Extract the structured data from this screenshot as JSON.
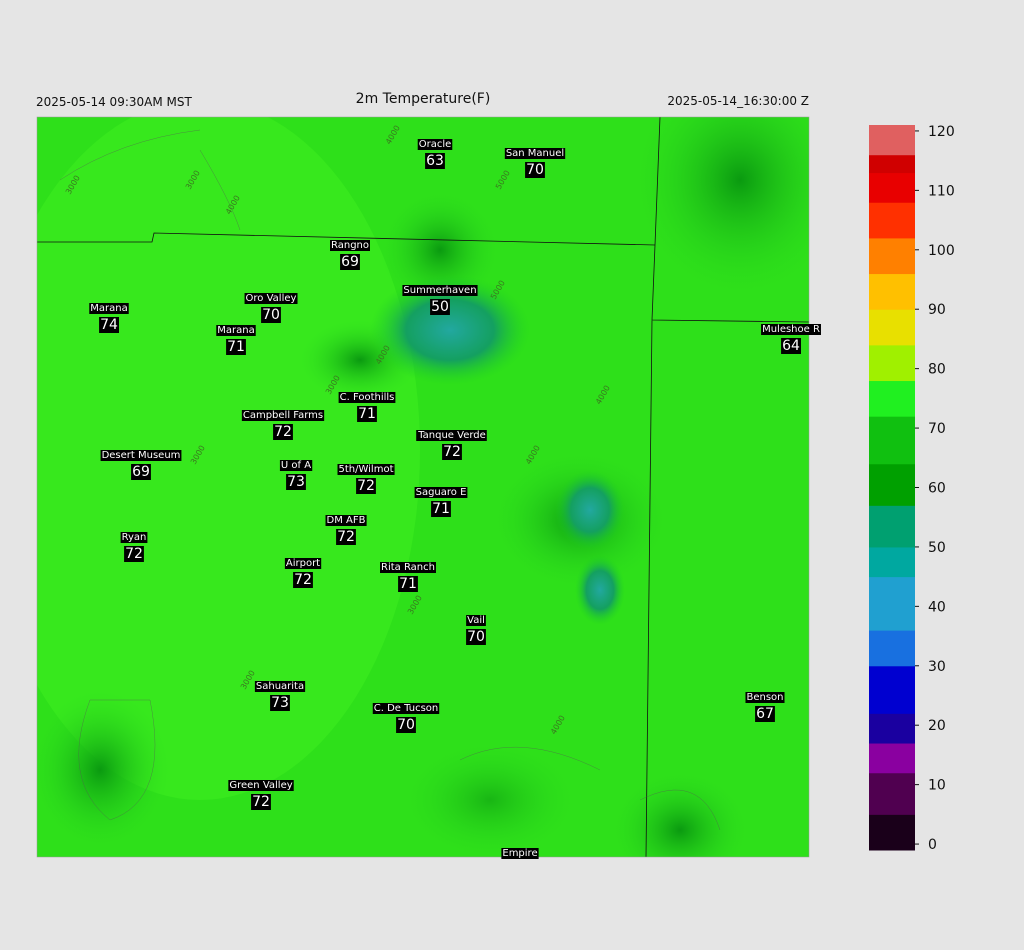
{
  "header": {
    "left": "2025-05-14 09:30AM MST",
    "title": "2m Temperature(F)",
    "right": "2025-05-14_16:30:00 Z"
  },
  "stations": [
    {
      "name": "Oracle",
      "value": 63
    },
    {
      "name": "San Manuel",
      "value": 70
    },
    {
      "name": "Rangno",
      "value": 69
    },
    {
      "name": "Summerhaven",
      "value": 50
    },
    {
      "name": "Oro Valley",
      "value": 70
    },
    {
      "name": "Marana",
      "value": 74
    },
    {
      "name": "Marana",
      "value": 71
    },
    {
      "name": "Muleshoe R",
      "value": 64
    },
    {
      "name": "C. Foothills",
      "value": 71
    },
    {
      "name": "Campbell Farms",
      "value": 72
    },
    {
      "name": "Tanque Verde",
      "value": 72
    },
    {
      "name": "Desert Museum",
      "value": 69
    },
    {
      "name": "U of A",
      "value": 73
    },
    {
      "name": "5th/Wilmot",
      "value": 72
    },
    {
      "name": "Saguaro E",
      "value": 71
    },
    {
      "name": "DM AFB",
      "value": 72
    },
    {
      "name": "Ryan",
      "value": 72
    },
    {
      "name": "Airport",
      "value": 72
    },
    {
      "name": "Rita Ranch",
      "value": 71
    },
    {
      "name": "Vail",
      "value": 70
    },
    {
      "name": "Benson",
      "value": 67
    },
    {
      "name": "Sahuarita",
      "value": 73
    },
    {
      "name": "C. De Tucson",
      "value": 70
    },
    {
      "name": "Green Valley",
      "value": 72
    },
    {
      "name": "Empire",
      "value": null
    }
  ],
  "contour_labels": [
    "3000",
    "3000",
    "4000",
    "5000",
    "4000",
    "3000",
    "4000",
    "5000",
    "4000",
    "3000",
    "4000",
    "3000",
    "4000",
    "3000"
  ],
  "colorbar": {
    "lim": [
      -1,
      121
    ],
    "ticks": [
      0,
      10,
      20,
      30,
      40,
      50,
      60,
      70,
      80,
      90,
      100,
      110,
      120
    ]
  }
}
